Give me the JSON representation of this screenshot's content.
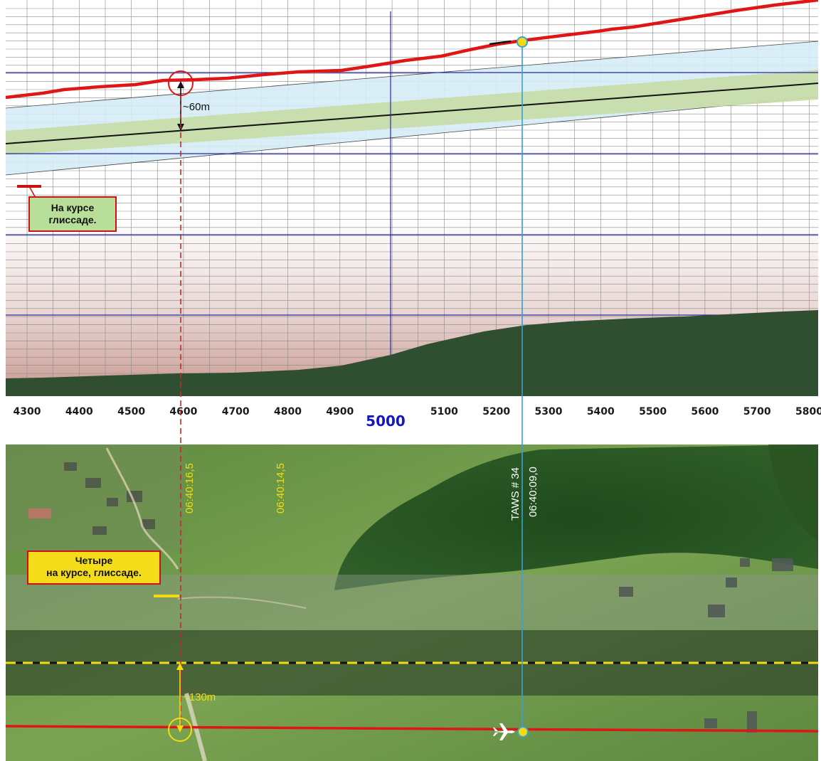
{
  "profile": {
    "axis_ticks": [
      "4300",
      "4400",
      "4500",
      "4600",
      "4700",
      "4800",
      "4900",
      "5100",
      "5200",
      "5300",
      "5400",
      "5500",
      "5600",
      "5700",
      "5800"
    ],
    "axis_major_label": "5000",
    "vertical_gap_label": "~60m",
    "callout_top": {
      "line1": "На курсе",
      "line2": "глиссаде."
    }
  },
  "satellite": {
    "time_labels": [
      "06:40:16,5",
      "06:40:14,5"
    ],
    "taws_label": "TAWS # 34",
    "taws_time": "06:40:09,0",
    "callout_bottom": {
      "line1": "Четыре",
      "line2": "на курсе, глиссаде."
    },
    "lateral_gap_label": "~130m"
  },
  "colors": {
    "flight_path": "#e01515",
    "blue_grid": "#2a2aa8",
    "glide_outer": "#d6ecf6",
    "glide_inner": "#c8dcaa",
    "terrain": "#2f4f30",
    "cyan_line": "#3aa0d8",
    "yellow": "#f2dc10",
    "red_dash": "#c82828"
  }
}
